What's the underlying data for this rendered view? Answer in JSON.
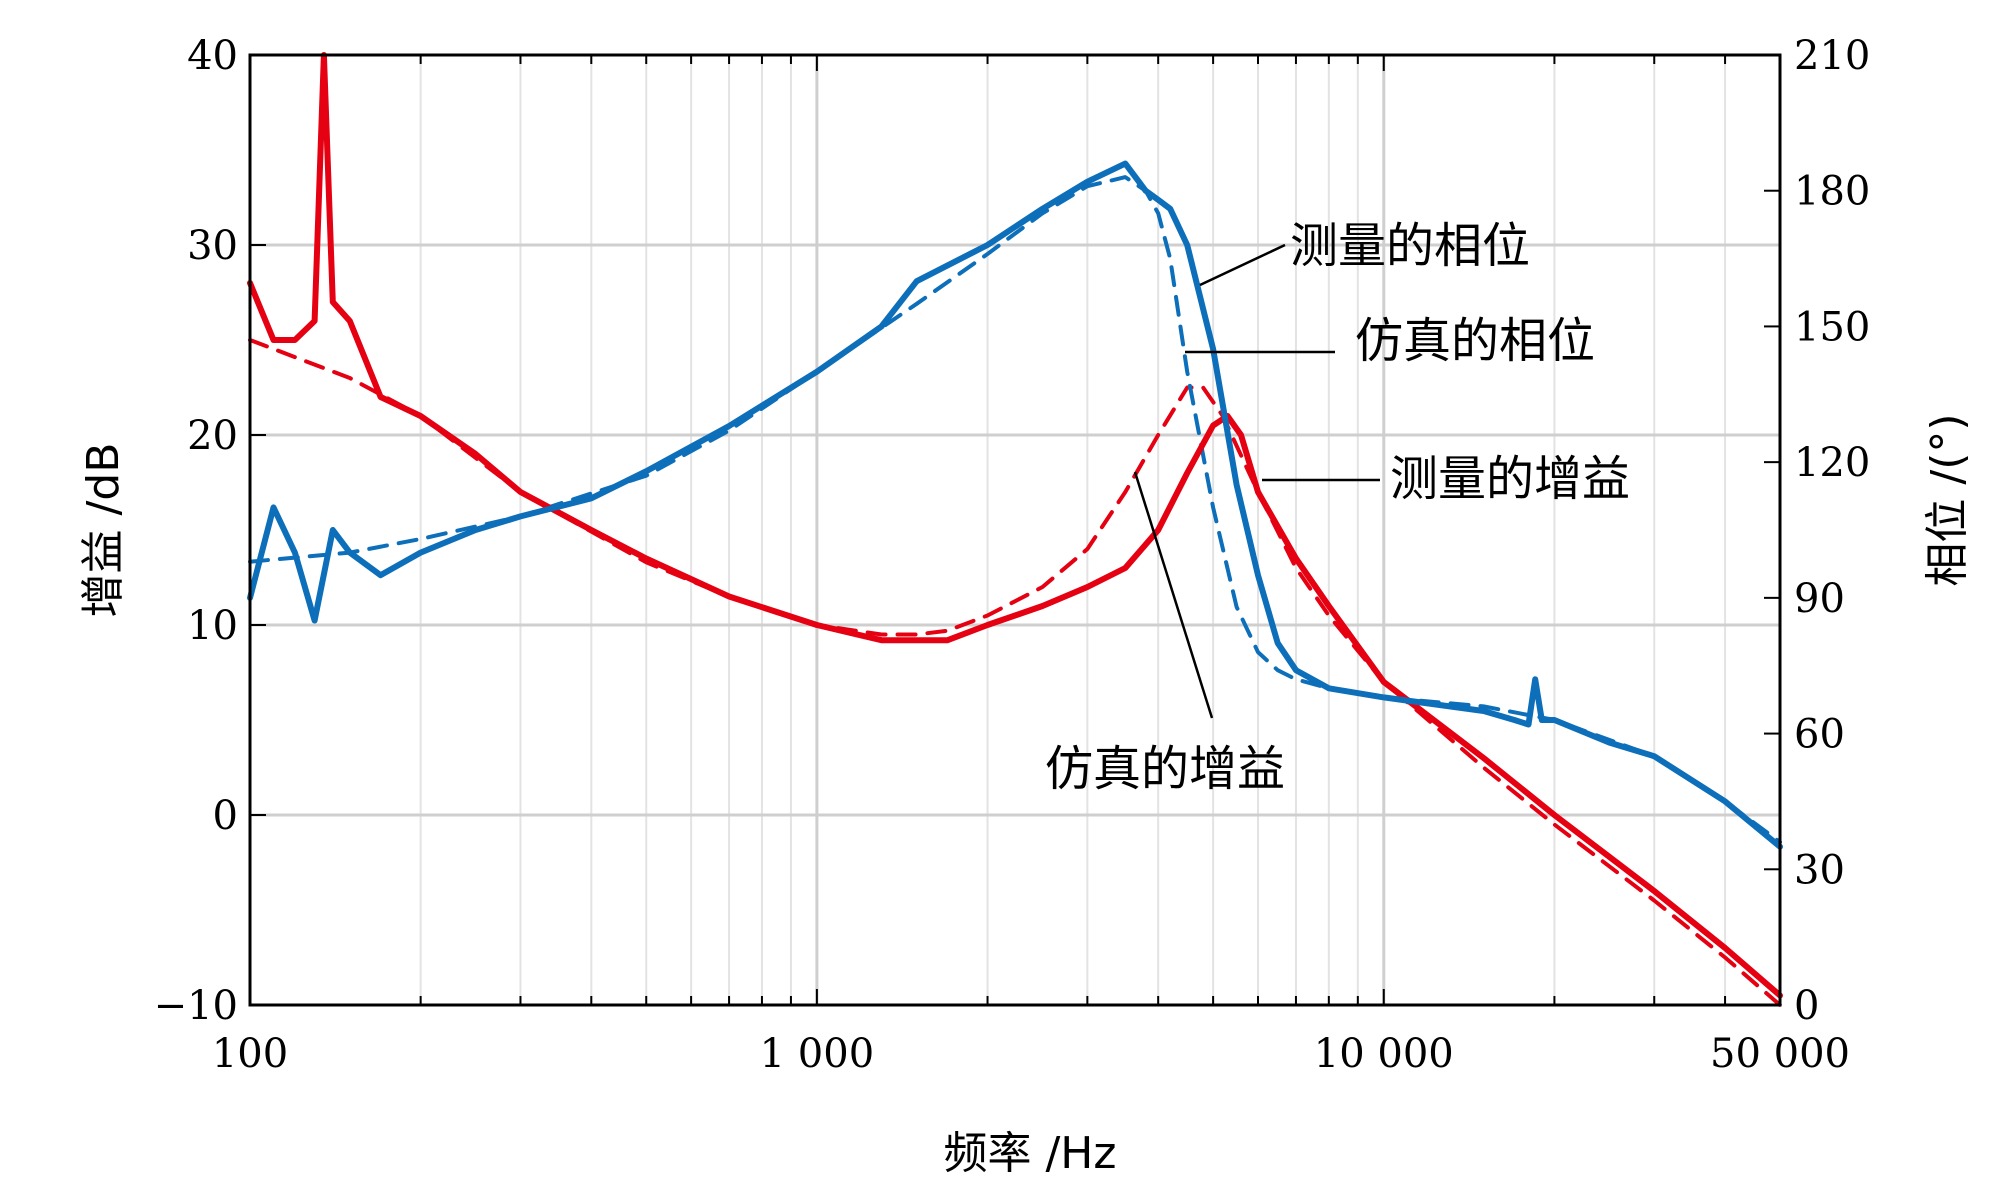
{
  "chart_data": {
    "type": "line",
    "xscale": "log",
    "xlim": [
      100,
      50000
    ],
    "xticks": [
      100,
      1000,
      10000,
      50000
    ],
    "xtick_labels": [
      "100",
      "1 000",
      "10 000",
      "50 000"
    ],
    "xlabel": "频率 /Hz",
    "ylabel_left": "增益 /dB",
    "ylim_left": [
      -10,
      40
    ],
    "yticks_left": [
      -10,
      0,
      10,
      20,
      30,
      40
    ],
    "ytick_labels_left": [
      "−10",
      "0",
      "10",
      "20",
      "30",
      "40"
    ],
    "ylabel_right": "相位 /(°)",
    "ylim_right": [
      0,
      210
    ],
    "yticks_right": [
      0,
      30,
      60,
      90,
      120,
      150,
      180,
      210
    ],
    "ytick_labels_right": [
      "0",
      "30",
      "60",
      "90",
      "120",
      "150",
      "180",
      "210"
    ],
    "grid": true,
    "series": [
      {
        "name": "测量的增益",
        "axis": "left",
        "color": "#e50012",
        "style": "solid",
        "x": [
          100,
          110,
          120,
          130,
          135,
          140,
          150,
          170,
          200,
          250,
          300,
          400,
          500,
          700,
          1000,
          1300,
          1500,
          1700,
          2000,
          2500,
          3000,
          3500,
          4000,
          4500,
          5000,
          5300,
          5600,
          6000,
          7000,
          8000,
          10000,
          15000,
          20000,
          30000,
          40000,
          50000
        ],
        "y": [
          28,
          25,
          25,
          26,
          40,
          27,
          26,
          22,
          21,
          19,
          17,
          15,
          13.5,
          11.5,
          10,
          9.2,
          9.2,
          9.2,
          10,
          11,
          12,
          13,
          15,
          18,
          20.5,
          21,
          20,
          17,
          13.5,
          11,
          7,
          3,
          0,
          -4,
          -7,
          -9.5
        ]
      },
      {
        "name": "仿真的增益",
        "axis": "left",
        "color": "#e50012",
        "style": "dashed",
        "x": [
          100,
          150,
          200,
          300,
          500,
          700,
          1000,
          1300,
          1500,
          1700,
          2000,
          2500,
          3000,
          3500,
          4000,
          4500,
          4800,
          5200,
          6000,
          7000,
          8000,
          10000,
          15000,
          20000,
          30000,
          40000,
          50000
        ],
        "y": [
          25,
          23,
          21,
          17,
          13.3,
          11.5,
          10,
          9.5,
          9.5,
          9.7,
          10.5,
          12,
          14,
          17,
          20,
          22.5,
          22.5,
          21,
          17,
          13,
          10.5,
          7,
          2.5,
          -0.5,
          -4.5,
          -7.5,
          -10
        ]
      },
      {
        "name": "测量的相位",
        "axis": "right",
        "color": "#0d6fba",
        "style": "solid",
        "x": [
          100,
          110,
          120,
          130,
          140,
          150,
          170,
          200,
          250,
          300,
          400,
          500,
          700,
          1000,
          1300,
          1500,
          2000,
          2500,
          3000,
          3500,
          3800,
          4000,
          4200,
          4500,
          5000,
          5500,
          6000,
          6500,
          7000,
          8000,
          10000,
          15000,
          17000,
          18000,
          18500,
          19000,
          20000,
          25000,
          30000,
          40000,
          50000
        ],
        "y": [
          90,
          110,
          100,
          85,
          105,
          100,
          95,
          100,
          105,
          108,
          112,
          118,
          128,
          140,
          150,
          160,
          168,
          176,
          182,
          186,
          180,
          178,
          176,
          168,
          145,
          115,
          95,
          80,
          74,
          70,
          68,
          65,
          63,
          62,
          72,
          63,
          63,
          58,
          55,
          45,
          35
        ]
      },
      {
        "name": "仿真的相位",
        "axis": "right",
        "color": "#0d6fba",
        "style": "dashed",
        "x": [
          100,
          150,
          200,
          300,
          500,
          700,
          1000,
          1500,
          2000,
          2500,
          3000,
          3500,
          3800,
          4000,
          4200,
          4500,
          5000,
          5500,
          6000,
          6500,
          7000,
          8000,
          10000,
          15000,
          20000,
          30000,
          40000,
          50000
        ],
        "y": [
          98,
          100,
          103,
          108,
          117,
          127,
          140,
          155,
          166,
          175,
          181,
          183,
          180,
          175,
          165,
          140,
          110,
          88,
          78,
          74,
          72,
          70,
          68,
          66,
          63,
          55,
          45,
          36
        ]
      }
    ],
    "annotations": [
      {
        "text": "测量的相位",
        "series": "测量的相位"
      },
      {
        "text": "仿真的相位",
        "series": "仿真的相位"
      },
      {
        "text": "测量的增益",
        "series": "测量的增益"
      },
      {
        "text": "仿真的增益",
        "series": "仿真的增益"
      }
    ]
  }
}
